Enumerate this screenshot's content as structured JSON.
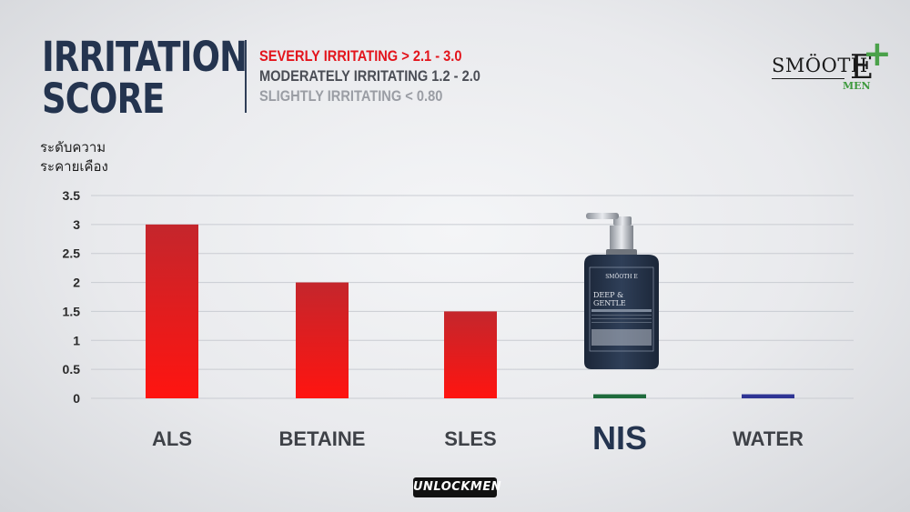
{
  "title": {
    "line1": "IRRITATION",
    "line2": "SCORE"
  },
  "legend": {
    "severe": "SEVERLY IRRITATING  > 2.1 - 3.0",
    "moderate": "MODERATELY IRRITATING  1.2 - 2.0",
    "slight": "SLIGHTLY IRRITATING < 0.80"
  },
  "brand": {
    "word": "SMÖOTH",
    "letter": "E",
    "sub": "MEN"
  },
  "footer": "UNLOCKMEN",
  "colors": {
    "severe": "#e3141c",
    "moderate": "#4a4d55",
    "slight": "#9a9da4",
    "nis_bar": "#1e6b3c",
    "water_bar": "#2e3494",
    "highlight_label": "#24344f"
  },
  "chart_data": {
    "type": "bar",
    "ylabel_lines": [
      "ระดับความ",
      "ระคายเคือง"
    ],
    "ylim": [
      0,
      3.5
    ],
    "yticks": [
      "0",
      "0.5",
      "1",
      "1.5",
      "2",
      "2.5",
      "3",
      "3.5"
    ],
    "grid": true,
    "categories": [
      "ALS",
      "BETAINE",
      "SLES",
      "NIS",
      "WATER"
    ],
    "values": [
      3.0,
      2.0,
      1.5,
      0.07,
      0.07
    ],
    "bar_colors": [
      "red",
      "red",
      "red",
      "#1e6b3c",
      "#2e3494"
    ],
    "highlight_category": "NIS"
  }
}
